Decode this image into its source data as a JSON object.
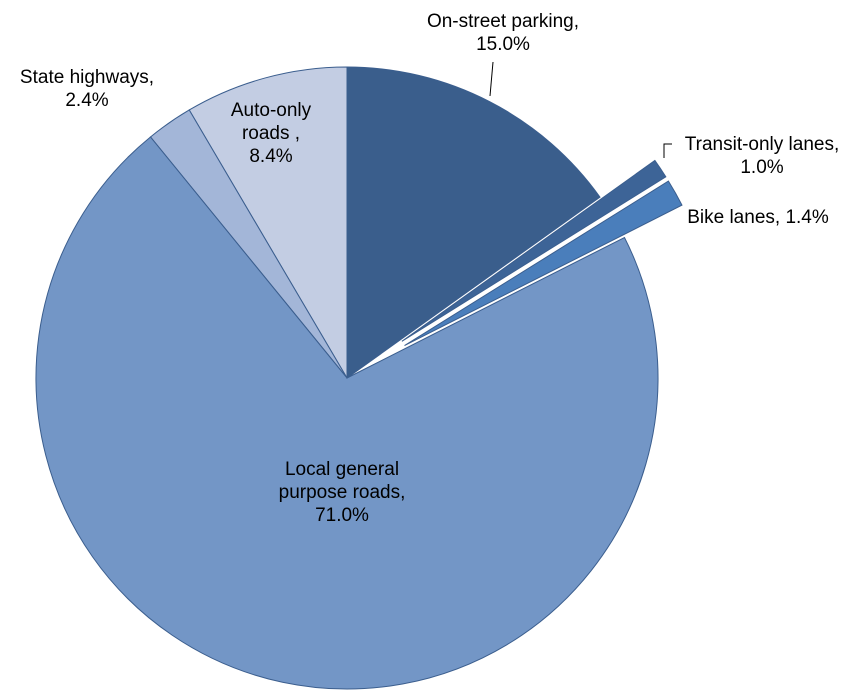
{
  "chart_data": {
    "type": "pie",
    "categories": [
      "On-street parking,",
      "Transit-only lanes,",
      "Bike lanes,",
      "Local general purpose roads,",
      "State highways,",
      "Auto-only roads ,"
    ],
    "values": [
      15.0,
      1.0,
      1.4,
      71.0,
      2.4,
      8.4
    ],
    "value_labels": [
      "15.0%",
      "1.0%",
      "1.4%",
      "71.0%",
      "2.4%",
      "8.4%"
    ],
    "colors": [
      "#3a5e8c",
      "#3d6497",
      "#4a7ebb",
      "#7396c6",
      "#a3b6d8",
      "#c3cde3"
    ]
  }
}
